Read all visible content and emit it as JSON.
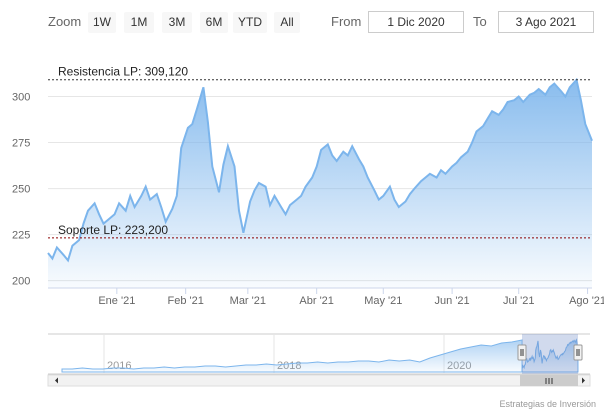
{
  "toolbar": {
    "zoom_label": "Zoom",
    "zoom_buttons": [
      "1W",
      "1M",
      "3M",
      "6M",
      "YTD",
      "All"
    ],
    "from_label": "From",
    "from_value": "1 Dic 2020",
    "to_label": "To",
    "to_value": "3 Ago 2021"
  },
  "credit": "Estrategias de Inversión",
  "colors": {
    "line": "#7cb5ec",
    "area_top": "#7cb5ec",
    "support_resistance": "#8b0000",
    "resistance_line": "#333333",
    "navigator_mask": "rgba(102,133,194,0.3)"
  },
  "chart_data": {
    "type": "area",
    "x_start": "2020-12-01",
    "x_end": "2021-08-03",
    "ylim": [
      196,
      322
    ],
    "yticks": [
      "200",
      "225",
      "250",
      "275",
      "300"
    ],
    "ytick_values": [
      200,
      225,
      250,
      275,
      300
    ],
    "xticks": [
      "Ene '21",
      "Feb '21",
      "Mar '21",
      "Abr '21",
      "May '21",
      "Jun '21",
      "Jul '21",
      "Ago '21"
    ],
    "xtick_dates": [
      "2021-01-01",
      "2021-02-01",
      "2021-03-01",
      "2021-04-01",
      "2021-05-01",
      "2021-06-01",
      "2021-07-01",
      "2021-08-01"
    ],
    "grid": true,
    "series": [
      {
        "x": [
          "2020-12-01",
          "2020-12-03",
          "2020-12-05",
          "2020-12-08",
          "2020-12-10",
          "2020-12-12",
          "2020-12-15",
          "2020-12-17",
          "2020-12-19",
          "2020-12-22",
          "2020-12-24",
          "2020-12-26",
          "2020-12-29",
          "2020-12-31",
          "2021-01-02",
          "2021-01-05",
          "2021-01-07",
          "2021-01-09",
          "2021-01-12",
          "2021-01-14",
          "2021-01-16",
          "2021-01-19",
          "2021-01-21",
          "2021-01-23",
          "2021-01-26",
          "2021-01-28",
          "2021-01-30",
          "2021-02-02",
          "2021-02-04",
          "2021-02-06",
          "2021-02-09",
          "2021-02-11",
          "2021-02-13",
          "2021-02-16",
          "2021-02-18",
          "2021-02-20",
          "2021-02-23",
          "2021-02-25",
          "2021-02-27",
          "2021-03-02",
          "2021-03-04",
          "2021-03-06",
          "2021-03-09",
          "2021-03-11",
          "2021-03-13",
          "2021-03-16",
          "2021-03-18",
          "2021-03-20",
          "2021-03-23",
          "2021-03-25",
          "2021-03-27",
          "2021-03-30",
          "2021-04-01",
          "2021-04-03",
          "2021-04-06",
          "2021-04-08",
          "2021-04-10",
          "2021-04-13",
          "2021-04-15",
          "2021-04-17",
          "2021-04-20",
          "2021-04-22",
          "2021-04-24",
          "2021-04-27",
          "2021-04-29",
          "2021-05-01",
          "2021-05-04",
          "2021-05-06",
          "2021-05-08",
          "2021-05-11",
          "2021-05-13",
          "2021-05-15",
          "2021-05-18",
          "2021-05-20",
          "2021-05-22",
          "2021-05-25",
          "2021-05-27",
          "2021-05-29",
          "2021-06-01",
          "2021-06-03",
          "2021-06-05",
          "2021-06-08",
          "2021-06-10",
          "2021-06-12",
          "2021-06-15",
          "2021-06-17",
          "2021-06-19",
          "2021-06-22",
          "2021-06-24",
          "2021-06-26",
          "2021-06-29",
          "2021-07-01",
          "2021-07-03",
          "2021-07-06",
          "2021-07-08",
          "2021-07-10",
          "2021-07-13",
          "2021-07-15",
          "2021-07-17",
          "2021-07-20",
          "2021-07-22",
          "2021-07-24",
          "2021-07-27",
          "2021-07-29",
          "2021-07-31",
          "2021-08-03"
        ],
        "y": [
          215,
          212,
          218,
          214,
          211,
          219,
          222,
          231,
          238,
          242,
          236,
          231,
          234,
          236,
          242,
          238,
          246,
          240,
          246,
          251,
          244,
          247,
          240,
          232,
          239,
          246,
          272,
          283,
          285,
          293,
          305,
          286,
          262,
          248,
          263,
          273,
          262,
          238,
          226,
          243,
          249,
          253,
          251,
          241,
          246,
          240,
          236,
          241,
          244,
          246,
          251,
          256,
          262,
          271,
          274,
          268,
          265,
          270,
          268,
          273,
          266,
          262,
          256,
          249,
          244,
          246,
          251,
          244,
          240,
          243,
          247,
          250,
          254,
          256,
          258,
          256,
          260,
          258,
          262,
          264,
          267,
          270,
          275,
          281,
          284,
          288,
          292,
          290,
          293,
          297,
          298,
          300,
          297,
          301,
          302,
          304,
          301,
          305,
          307,
          303,
          300,
          305,
          309,
          298,
          285,
          276
        ]
      }
    ],
    "annotations": [
      {
        "label": "Resistencia LP: 309,120",
        "value": 309.12
      },
      {
        "label": "Soporte LP: 223,200",
        "value": 223.2
      }
    ],
    "navigator": {
      "ticks": [
        "2016",
        "2018",
        "2020"
      ]
    }
  }
}
